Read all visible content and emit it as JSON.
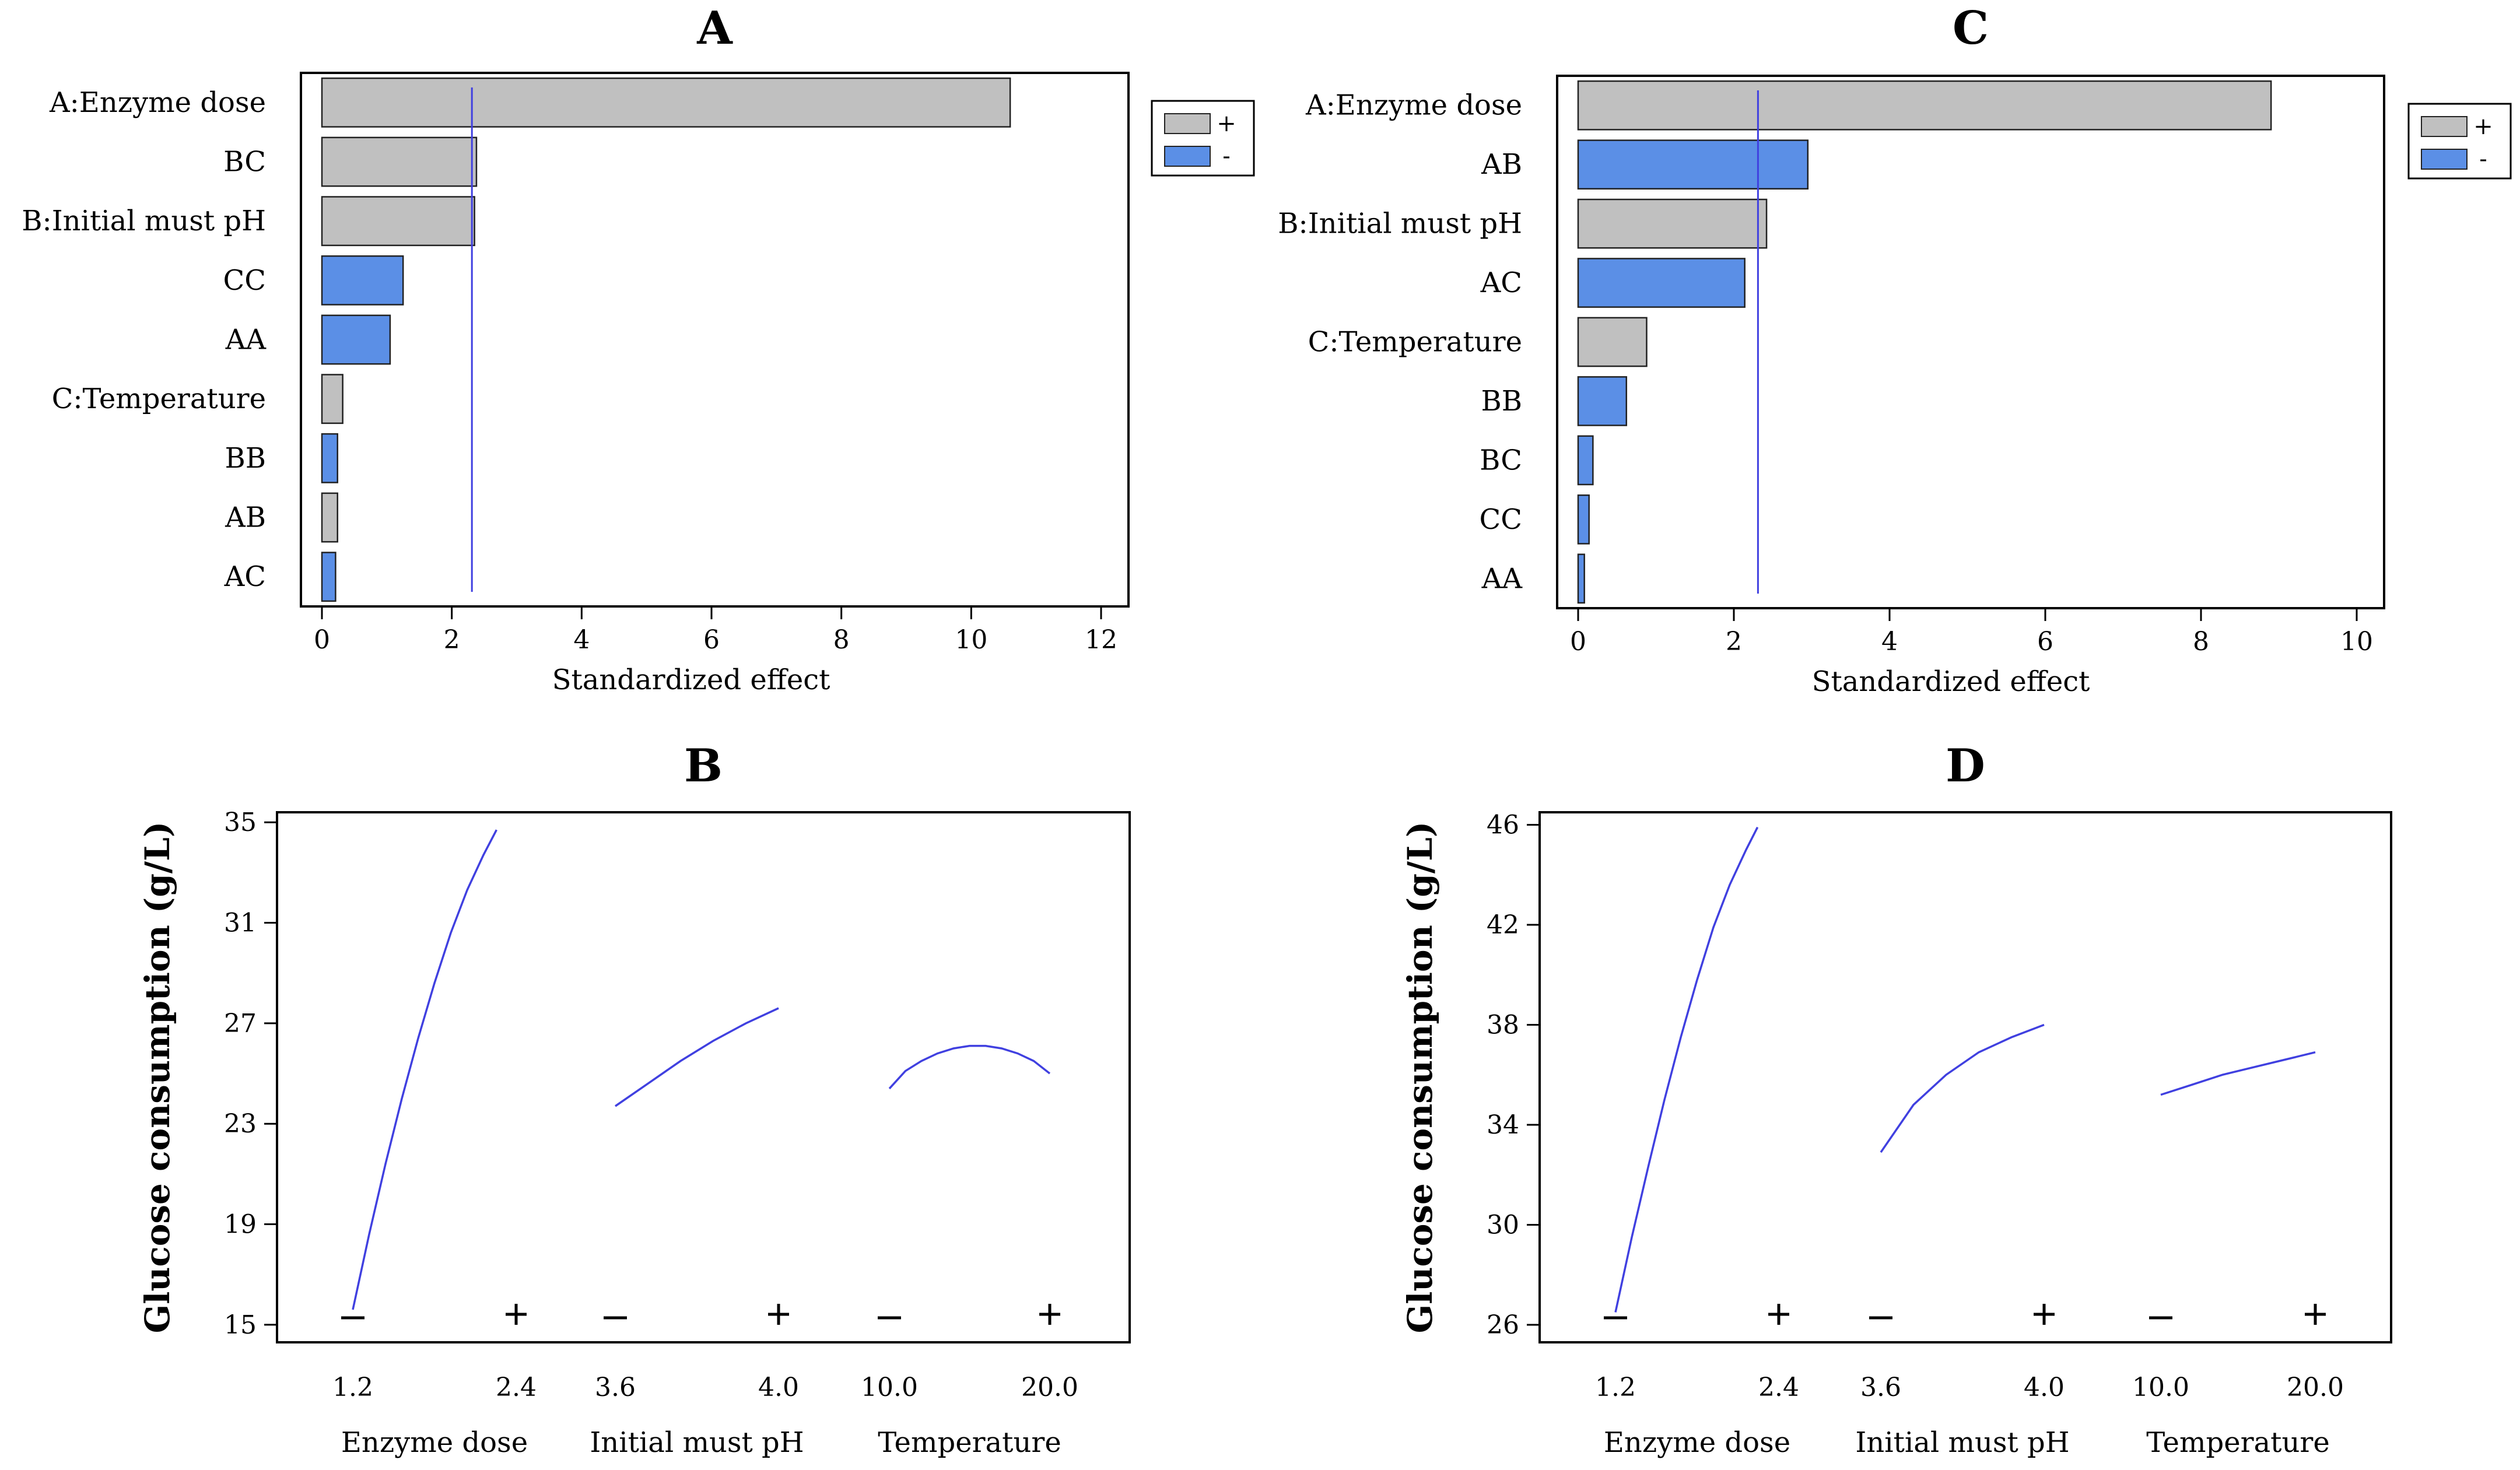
{
  "colors": {
    "positive": "#c0c0c0",
    "negative": "#5b8fe6",
    "line": "#4040e0",
    "frame": "#000000"
  },
  "chart_data": [
    {
      "panel": "A",
      "type": "bar",
      "orientation": "horizontal",
      "title": "A",
      "xlabel": "Standardized effect",
      "xlim": [
        0,
        12
      ],
      "xticks": [
        0,
        2,
        4,
        6,
        8,
        10,
        12
      ],
      "reference_line": 2.31,
      "legend": [
        {
          "sign": "positive",
          "label": "+"
        },
        {
          "sign": "negative",
          "label": "-"
        }
      ],
      "bars": [
        {
          "label": "A:Enzyme dose",
          "value": 10.6,
          "sign": "positive"
        },
        {
          "label": "BC",
          "value": 2.38,
          "sign": "positive"
        },
        {
          "label": "B:Initial must pH",
          "value": 2.35,
          "sign": "positive"
        },
        {
          "label": "CC",
          "value": 1.25,
          "sign": "negative"
        },
        {
          "label": "AA",
          "value": 1.05,
          "sign": "negative"
        },
        {
          "label": "C:Temperature",
          "value": 0.32,
          "sign": "positive"
        },
        {
          "label": "BB",
          "value": 0.24,
          "sign": "negative"
        },
        {
          "label": "AB",
          "value": 0.24,
          "sign": "positive"
        },
        {
          "label": "AC",
          "value": 0.21,
          "sign": "negative"
        }
      ]
    },
    {
      "panel": "C",
      "type": "bar",
      "orientation": "horizontal",
      "title": "C",
      "xlabel": "Standardized effect",
      "xlim": [
        0,
        10
      ],
      "xticks": [
        0,
        2,
        4,
        6,
        8,
        10
      ],
      "reference_line": 2.31,
      "legend": [
        {
          "sign": "positive",
          "label": "+"
        },
        {
          "sign": "negative",
          "label": "-"
        }
      ],
      "bars": [
        {
          "label": "A:Enzyme dose",
          "value": 8.9,
          "sign": "positive"
        },
        {
          "label": "AB",
          "value": 2.95,
          "sign": "negative"
        },
        {
          "label": "B:Initial must pH",
          "value": 2.42,
          "sign": "positive"
        },
        {
          "label": "AC",
          "value": 2.14,
          "sign": "negative"
        },
        {
          "label": "C:Temperature",
          "value": 0.88,
          "sign": "positive"
        },
        {
          "label": "BB",
          "value": 0.62,
          "sign": "negative"
        },
        {
          "label": "BC",
          "value": 0.19,
          "sign": "negative"
        },
        {
          "label": "CC",
          "value": 0.14,
          "sign": "negative"
        },
        {
          "label": "AA",
          "value": 0.08,
          "sign": "negative"
        }
      ]
    },
    {
      "panel": "B",
      "type": "line",
      "title": "B",
      "ylabel": "Glucose consumption (g/L)",
      "ylim": [
        14.3,
        35.4
      ],
      "yticks": [
        15,
        19,
        23,
        27,
        31,
        35
      ],
      "factors": [
        {
          "name": "Enzyme dose",
          "low": "1.2",
          "high": "2.4",
          "points": [
            [
              0,
              15.6
            ],
            [
              0.1,
              18.6
            ],
            [
              0.2,
              21.4
            ],
            [
              0.3,
              24.0
            ],
            [
              0.4,
              26.4
            ],
            [
              0.5,
              28.6
            ],
            [
              0.6,
              30.6
            ],
            [
              0.7,
              32.3
            ],
            [
              0.8,
              33.7
            ],
            [
              0.88,
              34.7
            ]
          ]
        },
        {
          "name": "Initial must pH",
          "low": "3.6",
          "high": "4.0",
          "points": [
            [
              0,
              23.7
            ],
            [
              0.2,
              24.6
            ],
            [
              0.4,
              25.5
            ],
            [
              0.6,
              26.3
            ],
            [
              0.8,
              27.0
            ],
            [
              1.0,
              27.6
            ]
          ]
        },
        {
          "name": "Temperature",
          "low": "10.0",
          "high": "20.0",
          "points": [
            [
              0,
              24.4
            ],
            [
              0.1,
              25.1
            ],
            [
              0.2,
              25.5
            ],
            [
              0.3,
              25.8
            ],
            [
              0.4,
              26.0
            ],
            [
              0.5,
              26.1
            ],
            [
              0.6,
              26.1
            ],
            [
              0.7,
              26.0
            ],
            [
              0.8,
              25.8
            ],
            [
              0.9,
              25.5
            ],
            [
              1.0,
              25.0
            ]
          ]
        }
      ]
    },
    {
      "panel": "D",
      "type": "line",
      "title": "D",
      "ylabel": "Glucose consumption (g/L)",
      "ylim": [
        25.3,
        46.5
      ],
      "yticks": [
        26,
        30,
        34,
        38,
        42,
        46
      ],
      "factors": [
        {
          "name": "Enzyme dose",
          "low": "1.2",
          "high": "2.4",
          "points": [
            [
              0,
              26.5
            ],
            [
              0.1,
              29.5
            ],
            [
              0.2,
              32.3
            ],
            [
              0.3,
              35.0
            ],
            [
              0.4,
              37.5
            ],
            [
              0.5,
              39.8
            ],
            [
              0.6,
              41.9
            ],
            [
              0.7,
              43.6
            ],
            [
              0.8,
              45.0
            ],
            [
              0.87,
              45.9
            ]
          ]
        },
        {
          "name": "Initial must pH",
          "low": "3.6",
          "high": "4.0",
          "points": [
            [
              0,
              32.9
            ],
            [
              0.2,
              34.8
            ],
            [
              0.4,
              36.0
            ],
            [
              0.6,
              36.9
            ],
            [
              0.8,
              37.5
            ],
            [
              1.0,
              38.0
            ]
          ]
        },
        {
          "name": "Temperature",
          "low": "10.0",
          "high": "20.0",
          "points": [
            [
              0,
              35.2
            ],
            [
              0.2,
              35.6
            ],
            [
              0.4,
              36.0
            ],
            [
              0.6,
              36.3
            ],
            [
              0.8,
              36.6
            ],
            [
              1.0,
              36.9
            ]
          ]
        }
      ]
    }
  ]
}
